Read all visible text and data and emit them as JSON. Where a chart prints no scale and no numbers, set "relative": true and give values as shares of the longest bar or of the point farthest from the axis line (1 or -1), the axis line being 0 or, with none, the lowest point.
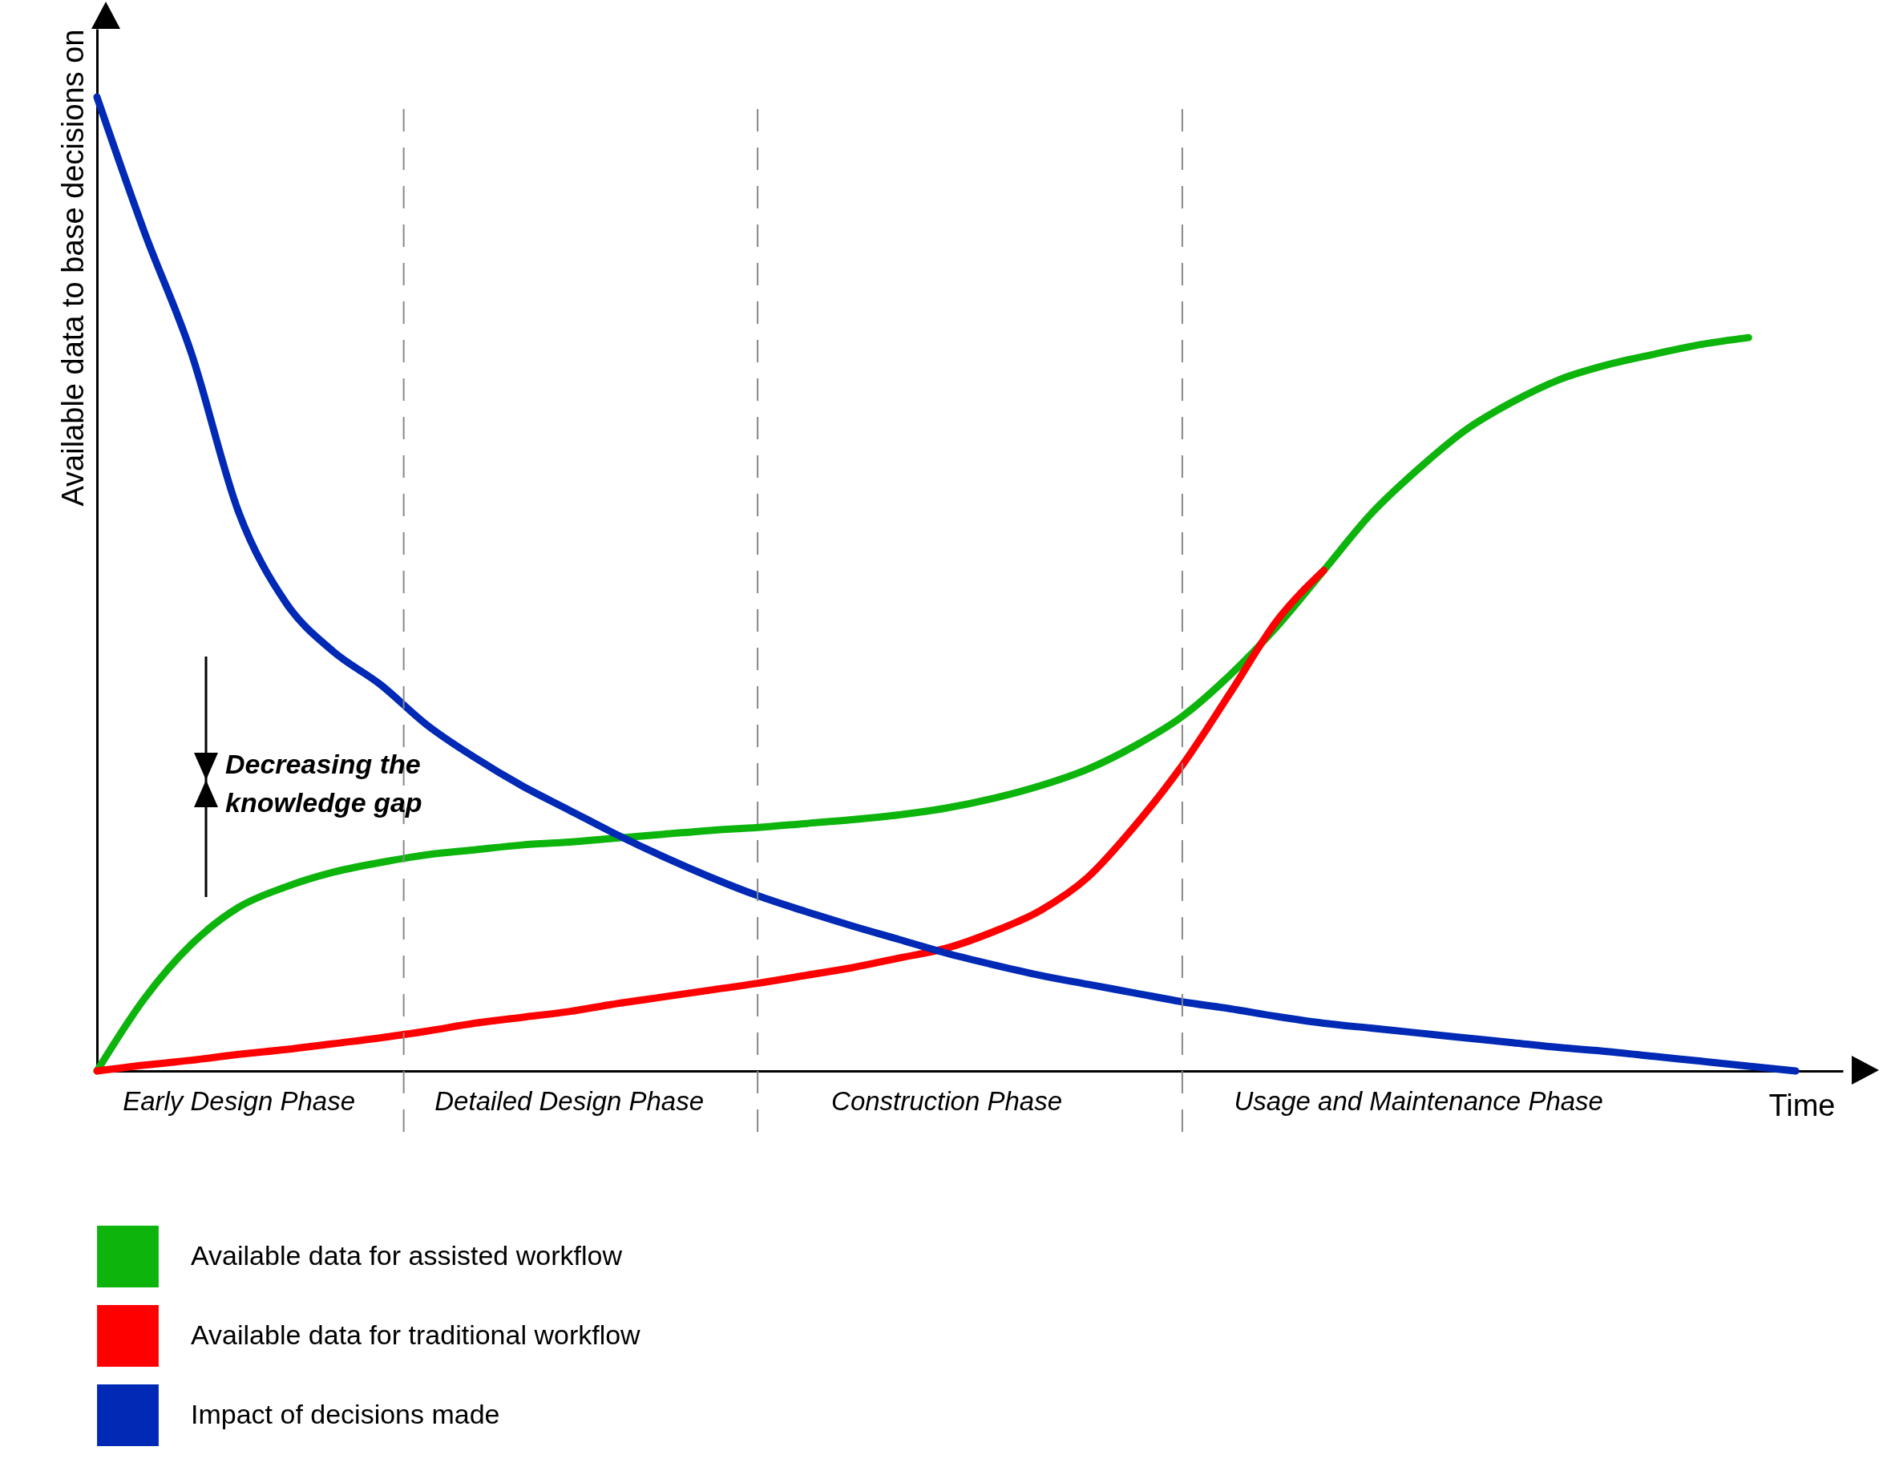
{
  "chart_data": {
    "type": "line",
    "relative": true,
    "tick_labels": "x",
    "legend": "bottom",
    "xlabel": "Time",
    "ylabel": "Available data to base decisions on",
    "categories": [
      null,
      null,
      null,
      "Early Design Phase",
      null,
      null,
      null,
      null,
      null,
      null,
      "Detailed Design Phase",
      null,
      null,
      null,
      null,
      null,
      null,
      null,
      "Construction Phase",
      null,
      null,
      null,
      null,
      null,
      null,
      null,
      null,
      null,
      "Usage and Maintenance Phase",
      null,
      null,
      null,
      null,
      null,
      null,
      null,
      null
    ],
    "series": [
      {
        "name": "Available data for assisted workflow",
        "color": "#0cb40c",
        "values": [
          0,
          0.074,
          0.13,
          0.168,
          0.189,
          0.204,
          0.214,
          0.222,
          0.227,
          0.232,
          0.235,
          0.239,
          0.243,
          0.247,
          0.25,
          0.254,
          0.258,
          0.263,
          0.27,
          0.28,
          0.293,
          0.31,
          0.334,
          0.364,
          0.406,
          0.456,
          0.514,
          0.572,
          0.618,
          0.658,
          0.687,
          0.71,
          0.725,
          0.736,
          0.746,
          0.753,
          null
        ]
      },
      {
        "name": "Available data for traditional workflow",
        "color": "#ff0000",
        "values": [
          0,
          0.006,
          0.011,
          0.017,
          0.022,
          0.028,
          0.034,
          0.041,
          0.049,
          0.055,
          0.061,
          0.069,
          0.076,
          0.083,
          0.09,
          0.098,
          0.106,
          0.116,
          0.126,
          0.143,
          0.165,
          0.199,
          0.252,
          0.314,
          0.387,
          0.462,
          0.514,
          null,
          null,
          null,
          null,
          null,
          null,
          null,
          null,
          null,
          null
        ]
      },
      {
        "name": "Impact of decisions made",
        "color": "#0029b5",
        "values": [
          1,
          0.862,
          0.737,
          0.574,
          0.481,
          0.431,
          0.397,
          0.355,
          0.322,
          0.293,
          0.268,
          0.243,
          0.22,
          0.199,
          0.18,
          0.164,
          0.149,
          0.135,
          0.121,
          0.109,
          0.098,
          0.089,
          0.08,
          0.071,
          0.064,
          0.056,
          0.049,
          0.044,
          0.039,
          0.034,
          0.029,
          0.024,
          0.02,
          0.015,
          0.01,
          0.005,
          0
        ]
      }
    ],
    "grid": "x",
    "annotations": [
      "Decreasing the\nknowledge gap"
    ]
  }
}
